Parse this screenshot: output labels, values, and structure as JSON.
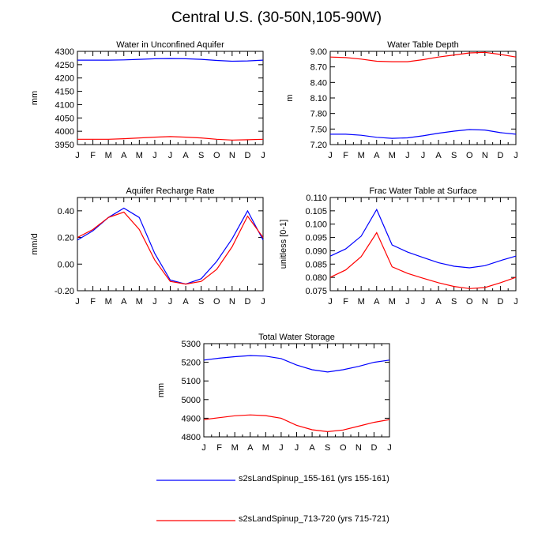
{
  "title": "Central U.S. (30-50N,105-90W)",
  "months": [
    "J",
    "F",
    "M",
    "A",
    "M",
    "J",
    "J",
    "A",
    "S",
    "O",
    "N",
    "D",
    "J"
  ],
  "legend": [
    {
      "label": "s2sLandSpinup_155-161 (yrs 155-161)",
      "color": "#0000ff"
    },
    {
      "label": "s2sLandSpinup_713-720 (yrs 715-721)",
      "color": "#ff0000"
    }
  ],
  "chart_data": [
    {
      "id": "aquifer-water",
      "type": "line",
      "title": "Water in Unconfined Aquifer",
      "xlabel": "",
      "ylabel": "mm",
      "ylim": [
        3950,
        4300
      ],
      "yticks": [
        3950,
        4000,
        4050,
        4100,
        4150,
        4200,
        4250,
        4300
      ],
      "ytick_labels": [
        "3950",
        "4000",
        "4050",
        "4100",
        "4150",
        "4200",
        "4250",
        "4300"
      ],
      "series": [
        {
          "name": "s2sLandSpinup_155-161 (yrs 155-161)",
          "values": [
            4267,
            4267,
            4267,
            4268,
            4270,
            4272,
            4273,
            4272,
            4270,
            4266,
            4263,
            4264,
            4267
          ]
        },
        {
          "name": "s2sLandSpinup_713-720 (yrs 715-721)",
          "values": [
            3970,
            3970,
            3970,
            3972,
            3975,
            3978,
            3980,
            3978,
            3975,
            3970,
            3967,
            3968,
            3970
          ]
        }
      ]
    },
    {
      "id": "water-table-depth",
      "type": "line",
      "title": "Water Table Depth",
      "xlabel": "",
      "ylabel": "m",
      "ylim": [
        7.2,
        9.0
      ],
      "yticks": [
        7.2,
        7.5,
        7.8,
        8.1,
        8.4,
        8.7,
        9.0
      ],
      "ytick_labels": [
        "7.20",
        "7.50",
        "7.80",
        "8.10",
        "8.40",
        "8.70",
        "9.00"
      ],
      "series": [
        {
          "name": "s2sLandSpinup_155-161 (yrs 155-161)",
          "values": [
            7.4,
            7.4,
            7.38,
            7.34,
            7.32,
            7.33,
            7.37,
            7.42,
            7.46,
            7.49,
            7.48,
            7.43,
            7.4
          ]
        },
        {
          "name": "s2sLandSpinup_713-720 (yrs 715-721)",
          "values": [
            8.89,
            8.88,
            8.85,
            8.81,
            8.8,
            8.8,
            8.84,
            8.89,
            8.93,
            8.97,
            8.98,
            8.94,
            8.89
          ]
        }
      ]
    },
    {
      "id": "recharge-rate",
      "type": "line",
      "title": "Aquifer Recharge Rate",
      "xlabel": "",
      "ylabel": "mm/d",
      "ylim": [
        -0.2,
        0.5
      ],
      "yticks": [
        -0.2,
        0.0,
        0.2,
        0.4
      ],
      "ytick_labels": [
        "-0.20",
        "0.00",
        "0.20",
        "0.40"
      ],
      "series": [
        {
          "name": "s2sLandSpinup_155-161 (yrs 155-161)",
          "values": [
            0.18,
            0.25,
            0.35,
            0.42,
            0.35,
            0.08,
            -0.12,
            -0.15,
            -0.11,
            0.02,
            0.19,
            0.4,
            0.18
          ]
        },
        {
          "name": "s2sLandSpinup_713-720 (yrs 715-721)",
          "values": [
            0.2,
            0.26,
            0.35,
            0.39,
            0.26,
            0.03,
            -0.13,
            -0.15,
            -0.13,
            -0.04,
            0.13,
            0.36,
            0.2
          ]
        }
      ]
    },
    {
      "id": "frac-water-table",
      "type": "line",
      "title": "Frac Water Table at Surface",
      "xlabel": "",
      "ylabel": "unitless [0-1]",
      "ylim": [
        0.075,
        0.11
      ],
      "yticks": [
        0.075,
        0.08,
        0.085,
        0.09,
        0.095,
        0.1,
        0.105,
        0.11
      ],
      "ytick_labels": [
        "0.075",
        "0.080",
        "0.085",
        "0.090",
        "0.095",
        "0.100",
        "0.105",
        "0.110"
      ],
      "series": [
        {
          "name": "s2sLandSpinup_155-161 (yrs 155-161)",
          "values": [
            0.088,
            0.0907,
            0.0955,
            0.1055,
            0.0922,
            0.0895,
            0.0875,
            0.0855,
            0.0842,
            0.0836,
            0.0844,
            0.0863,
            0.088
          ]
        },
        {
          "name": "s2sLandSpinup_713-720 (yrs 715-721)",
          "values": [
            0.08,
            0.0828,
            0.0878,
            0.0968,
            0.084,
            0.0815,
            0.0797,
            0.078,
            0.0766,
            0.0758,
            0.0762,
            0.078,
            0.08
          ]
        }
      ]
    },
    {
      "id": "total-water-storage",
      "type": "line",
      "title": "Total Water Storage",
      "xlabel": "",
      "ylabel": "mm",
      "ylim": [
        4800,
        5300
      ],
      "yticks": [
        4800,
        4900,
        5000,
        5100,
        5200,
        5300
      ],
      "ytick_labels": [
        "4800",
        "4900",
        "5000",
        "5100",
        "5200",
        "5300"
      ],
      "series": [
        {
          "name": "s2sLandSpinup_155-161 (yrs 155-161)",
          "values": [
            5212,
            5222,
            5230,
            5236,
            5233,
            5220,
            5185,
            5160,
            5148,
            5160,
            5178,
            5200,
            5212
          ]
        },
        {
          "name": "s2sLandSpinup_713-720 (yrs 715-721)",
          "values": [
            4893,
            4903,
            4913,
            4918,
            4914,
            4900,
            4862,
            4838,
            4828,
            4837,
            4857,
            4878,
            4893
          ]
        }
      ]
    }
  ]
}
